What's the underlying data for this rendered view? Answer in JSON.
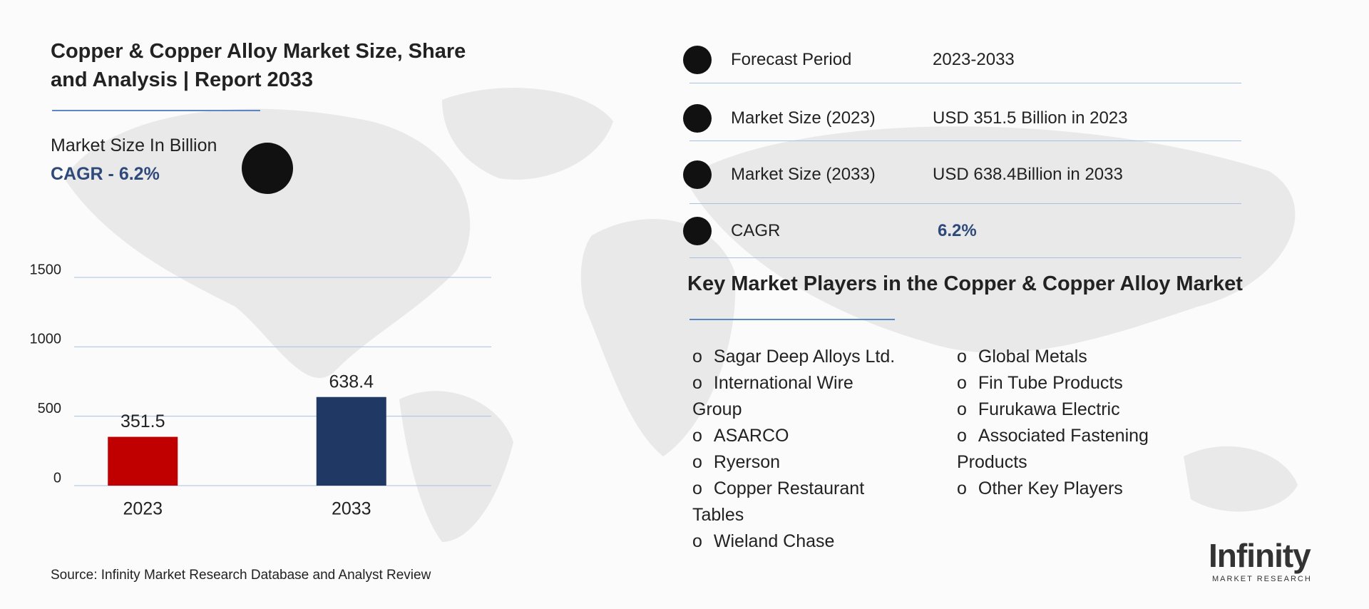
{
  "header": {
    "title_line_1": "Copper & Copper Alloy Market Size, Share",
    "title_line_2": "and Analysis | Report 2033",
    "unit": "Market Size In Billion",
    "cagr": "CAGR - 6.2%"
  },
  "chart_data": {
    "type": "bar",
    "categories": [
      "2023",
      "2033"
    ],
    "values": [
      351.5,
      638.4
    ],
    "colors": [
      "#c00000",
      "#203864"
    ],
    "ylim": [
      0,
      1500
    ],
    "yticks": [
      0,
      500,
      1000,
      1500
    ],
    "grid": true
  },
  "info": {
    "rows": [
      [
        "Forecast Period",
        "2023-2033"
      ],
      [
        "Market Size (2023)",
        "USD 351.5 Billion in 2023"
      ],
      [
        "Market Size (2033)",
        "USD 638.4Billion in 2033"
      ],
      [
        "CAGR",
        "6.2%"
      ]
    ]
  },
  "players": {
    "title": "Key Market Players in the Copper & Copper Alloy Market",
    "column_1": [
      "Sagar Deep Alloys Ltd.",
      "International Wire Group",
      "ASARCO",
      "Ryerson",
      "Copper Restaurant Tables",
      "Wieland Chase"
    ],
    "column_2": [
      "Global Metals",
      "Fin Tube Products",
      "Furukawa Electric",
      "Associated Fastening Products",
      "Other Key Players"
    ]
  },
  "source": "Source: Infinity Market Research Database and Analyst Review",
  "logo": {
    "name": "Infinity",
    "tagline": "MARKET RESEARCH"
  }
}
